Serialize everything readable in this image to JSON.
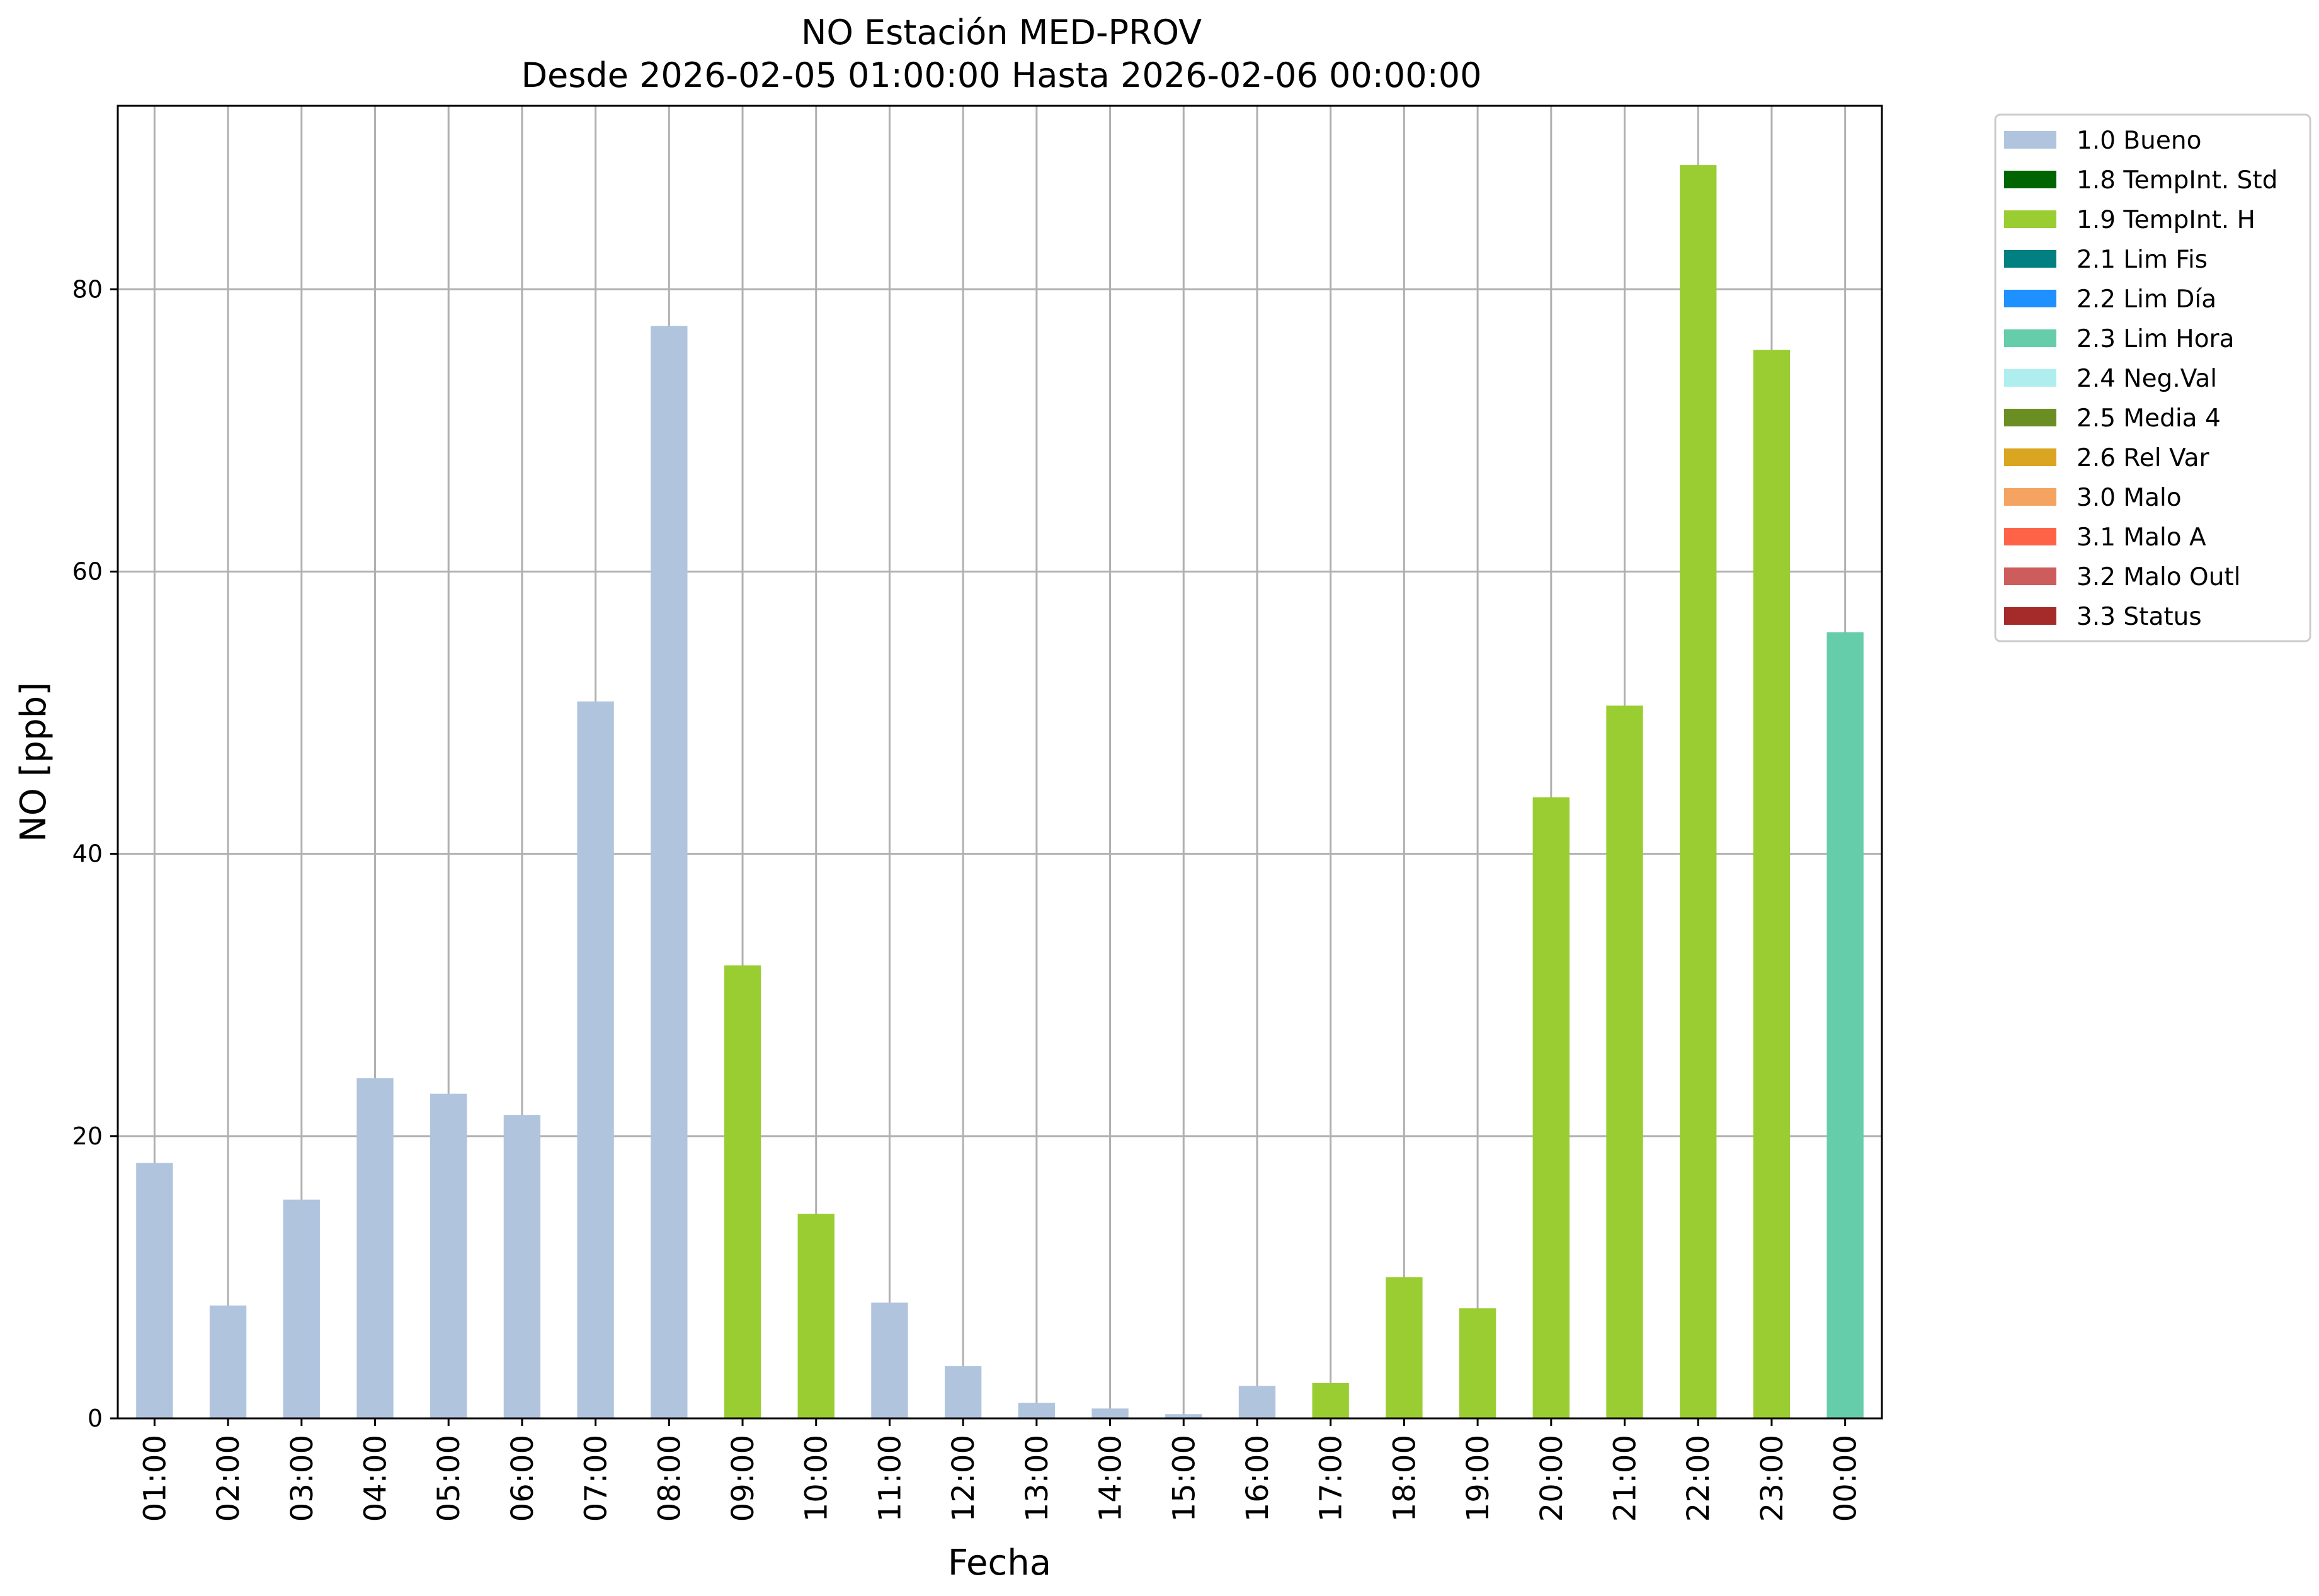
{
  "chart_data": {
    "type": "bar",
    "title_line1": "NO Estación MED-PROV",
    "title_line2": "Desde 2026-02-05 01:00:00 Hasta 2026-02-06 00:00:00",
    "xlabel": "Fecha",
    "ylabel": "NO [ppb]",
    "ylim": [
      0,
      93
    ],
    "yticks": [
      0,
      20,
      40,
      60,
      80
    ],
    "grid": true,
    "legend_position": "outside-top-right",
    "categories": [
      "01:00",
      "02:00",
      "03:00",
      "04:00",
      "05:00",
      "06:00",
      "07:00",
      "08:00",
      "09:00",
      "10:00",
      "11:00",
      "12:00",
      "13:00",
      "14:00",
      "15:00",
      "16:00",
      "17:00",
      "18:00",
      "19:00",
      "20:00",
      "21:00",
      "22:00",
      "23:00",
      "00:00"
    ],
    "values": [
      18.1,
      8.0,
      15.5,
      24.1,
      23.0,
      21.5,
      50.8,
      77.4,
      32.1,
      14.5,
      8.2,
      3.7,
      1.1,
      0.7,
      0.3,
      2.3,
      2.5,
      10.0,
      7.8,
      44.0,
      50.5,
      88.8,
      75.7,
      55.7
    ],
    "flags": [
      "1.0 Bueno",
      "1.0 Bueno",
      "1.0 Bueno",
      "1.0 Bueno",
      "1.0 Bueno",
      "1.0 Bueno",
      "1.0 Bueno",
      "1.0 Bueno",
      "1.9 TempInt. H",
      "1.9 TempInt. H",
      "1.0 Bueno",
      "1.0 Bueno",
      "1.0 Bueno",
      "1.0 Bueno",
      "1.0 Bueno",
      "1.0 Bueno",
      "1.9 TempInt. H",
      "1.9 TempInt. H",
      "1.9 TempInt. H",
      "1.9 TempInt. H",
      "1.9 TempInt. H",
      "1.9 TempInt. H",
      "1.9 TempInt. H",
      "2.3 Lim Hora"
    ],
    "legend": [
      {
        "label": "1.0 Bueno",
        "color": "#b0c4de"
      },
      {
        "label": "1.8 TempInt. Std",
        "color": "#006400"
      },
      {
        "label": "1.9 TempInt. H",
        "color": "#9acd32"
      },
      {
        "label": "2.1 Lim Fis",
        "color": "#008080"
      },
      {
        "label": "2.2 Lim Día",
        "color": "#1e90ff"
      },
      {
        "label": "2.3 Lim Hora",
        "color": "#66cdaa"
      },
      {
        "label": "2.4 Neg.Val",
        "color": "#afeeee"
      },
      {
        "label": "2.5 Media 4",
        "color": "#6b8e23"
      },
      {
        "label": "2.6 Rel Var",
        "color": "#daa520"
      },
      {
        "label": "3.0 Malo",
        "color": "#f4a460"
      },
      {
        "label": "3.1 Malo A",
        "color": "#ff6347"
      },
      {
        "label": "3.2 Malo Outl",
        "color": "#cd5c5c"
      },
      {
        "label": "3.3 Status",
        "color": "#a52a2a"
      }
    ]
  }
}
